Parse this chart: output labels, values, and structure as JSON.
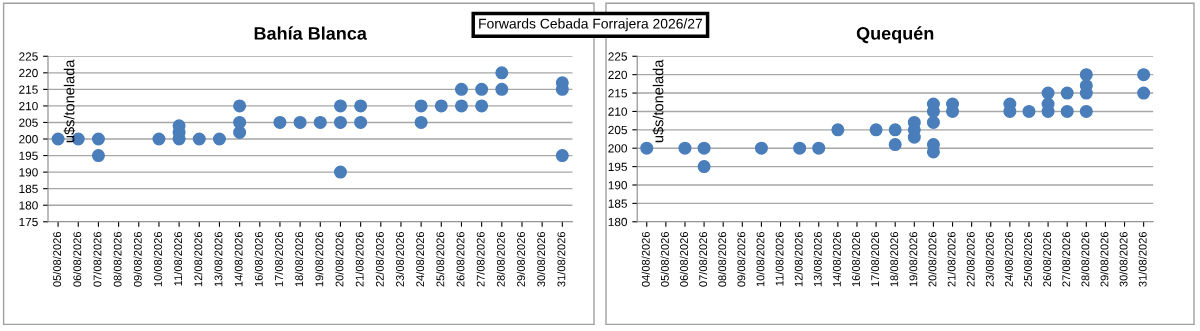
{
  "chart_data": [
    {
      "type": "scatter",
      "title": "Bahía Blanca",
      "ylabel": "u$s/tonelada",
      "categories": [
        "05/08/2026",
        "06/08/2026",
        "07/08/2026",
        "08/08/2026",
        "09/08/2026",
        "10/08/2026",
        "11/08/2026",
        "12/08/2026",
        "13/08/2026",
        "14/08/2026",
        "16/08/2026",
        "17/08/2026",
        "18/08/2026",
        "19/08/2026",
        "20/08/2026",
        "21/08/2026",
        "22/08/2026",
        "23/08/2026",
        "24/08/2026",
        "25/08/2026",
        "26/08/2026",
        "27/08/2026",
        "28/08/2026",
        "29/08/2026",
        "30/08/2026",
        "31/08/2026"
      ],
      "series": [
        {
          "color": "#4a7ebb",
          "x": [
            "05/08/2026",
            "06/08/2026",
            "07/08/2026",
            "07/08/2026",
            "10/08/2026",
            "11/08/2026",
            "11/08/2026",
            "11/08/2026",
            "12/08/2026",
            "13/08/2026",
            "14/08/2026",
            "14/08/2026",
            "14/08/2026",
            "17/08/2026",
            "18/08/2026",
            "19/08/2026",
            "20/08/2026",
            "20/08/2026",
            "20/08/2026",
            "21/08/2026",
            "21/08/2026",
            "24/08/2026",
            "24/08/2026",
            "25/08/2026",
            "26/08/2026",
            "26/08/2026",
            "27/08/2026",
            "27/08/2026",
            "28/08/2026",
            "28/08/2026",
            "31/08/2026",
            "31/08/2026",
            "31/08/2026"
          ],
          "values": [
            200,
            200,
            200,
            195,
            200,
            200,
            202,
            204,
            200,
            200,
            202,
            205,
            210,
            205,
            205,
            205,
            190,
            205,
            210,
            205,
            210,
            205,
            210,
            210,
            210,
            215,
            210,
            215,
            215,
            220,
            195,
            215,
            217
          ]
        }
      ],
      "ylim": [
        175,
        225
      ],
      "yticks": [
        175,
        180,
        185,
        190,
        195,
        200,
        205,
        210,
        215,
        220,
        225
      ],
      "grid": "y",
      "marker": "circle",
      "legend": false,
      "annotations": [
        "Forwards Cebada Forrajera 2026/27"
      ]
    },
    {
      "type": "scatter",
      "title": "Quequén",
      "ylabel": "u$s/tonelada",
      "categories": [
        "04/08/2026",
        "05/08/2026",
        "06/08/2026",
        "07/08/2026",
        "08/08/2026",
        "09/08/2026",
        "10/08/2026",
        "11/08/2026",
        "12/08/2026",
        "13/08/2026",
        "14/08/2026",
        "16/08/2026",
        "17/08/2026",
        "18/08/2026",
        "19/08/2026",
        "20/08/2026",
        "21/08/2026",
        "22/08/2026",
        "23/08/2026",
        "24/08/2026",
        "25/08/2026",
        "26/08/2026",
        "27/08/2026",
        "28/08/2026",
        "29/08/2026",
        "30/08/2026",
        "31/08/2026"
      ],
      "series": [
        {
          "color": "#4a7ebb",
          "x": [
            "04/08/2026",
            "06/08/2026",
            "07/08/2026",
            "07/08/2026",
            "10/08/2026",
            "12/08/2026",
            "13/08/2026",
            "14/08/2026",
            "17/08/2026",
            "18/08/2026",
            "18/08/2026",
            "19/08/2026",
            "19/08/2026",
            "19/08/2026",
            "20/08/2026",
            "20/08/2026",
            "20/08/2026",
            "20/08/2026",
            "20/08/2026",
            "21/08/2026",
            "21/08/2026",
            "24/08/2026",
            "24/08/2026",
            "25/08/2026",
            "26/08/2026",
            "26/08/2026",
            "26/08/2026",
            "27/08/2026",
            "27/08/2026",
            "28/08/2026",
            "28/08/2026",
            "28/08/2026",
            "28/08/2026",
            "31/08/2026",
            "31/08/2026"
          ],
          "values": [
            200,
            200,
            200,
            195,
            200,
            200,
            200,
            205,
            205,
            201,
            205,
            203,
            205,
            207,
            199,
            201,
            207,
            210,
            212,
            210,
            212,
            210,
            212,
            210,
            210,
            212,
            215,
            210,
            215,
            210,
            215,
            217,
            220,
            215,
            220
          ]
        }
      ],
      "ylim": [
        180,
        225
      ],
      "yticks": [
        180,
        185,
        190,
        195,
        200,
        205,
        210,
        215,
        220,
        225
      ],
      "grid": "y",
      "marker": "circle",
      "legend": false
    }
  ]
}
